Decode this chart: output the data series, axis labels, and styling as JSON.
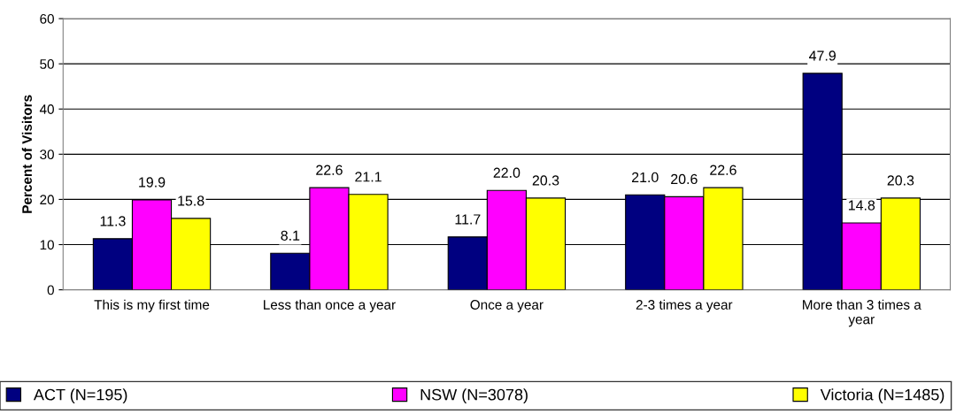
{
  "chart_data": {
    "type": "bar",
    "ylabel": "Percent of Visitors",
    "categories": [
      "This is my first time",
      "Less than once a year",
      "Once a year",
      "2-3 times a year",
      "More than 3 times a year"
    ],
    "series": [
      {
        "name": "ACT (N=195)",
        "color": "#000080",
        "values": [
          11.3,
          8.1,
          11.7,
          21.0,
          47.9
        ],
        "value_labels": [
          "11.3",
          "8.1",
          "11.7",
          "21.0",
          "47.9"
        ]
      },
      {
        "name": "NSW (N=3078)",
        "color": "#ff00ff",
        "values": [
          19.9,
          22.6,
          22.0,
          20.6,
          14.8
        ],
        "value_labels": [
          "19.9",
          "22.6",
          "22.0",
          "20.6",
          "14.8"
        ]
      },
      {
        "name": "Victoria (N=1485)",
        "color": "#ffff00",
        "values": [
          15.8,
          21.1,
          20.3,
          22.6,
          20.3
        ],
        "value_labels": [
          "15.8",
          "21.1",
          "20.3",
          "22.6",
          "20.3"
        ]
      }
    ],
    "ylim": [
      0,
      60
    ],
    "yticks": [
      0,
      10,
      20,
      30,
      40,
      50,
      60
    ],
    "grid": "y",
    "legend": "bottom"
  }
}
